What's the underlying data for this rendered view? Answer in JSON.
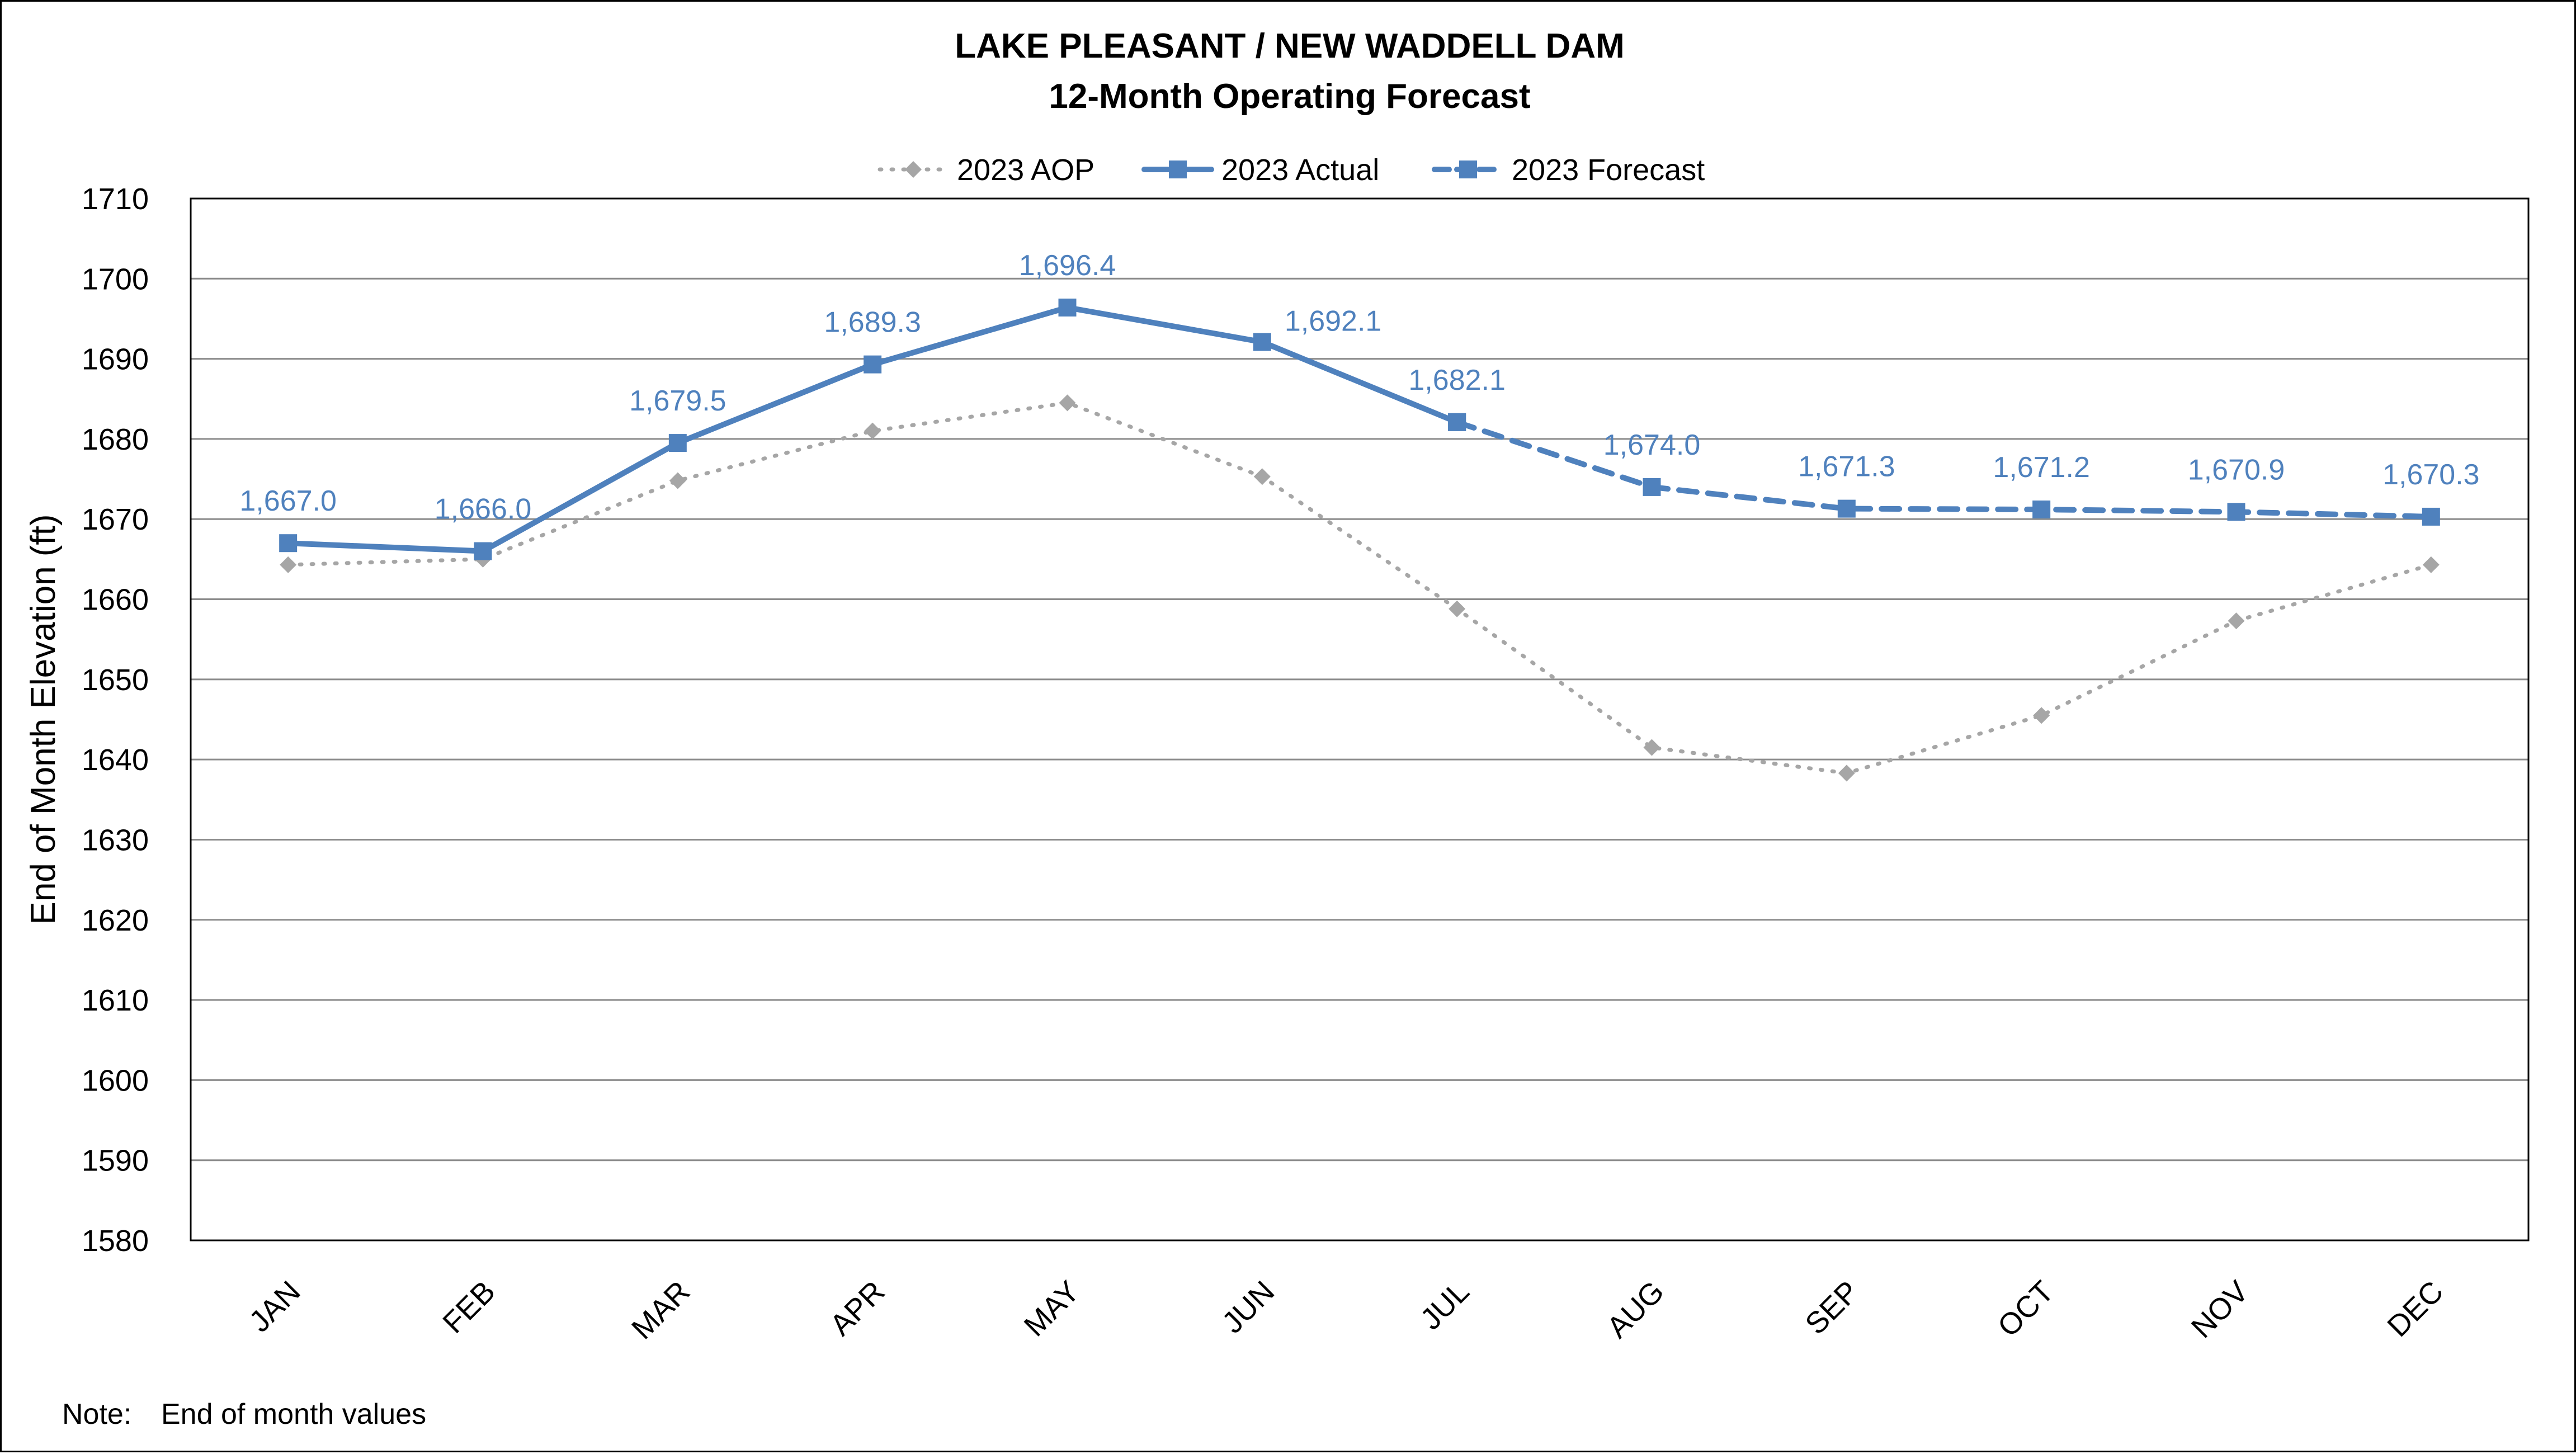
{
  "chart_data": {
    "type": "line",
    "title": "LAKE PLEASANT / NEW WADDELL DAM",
    "subtitle": "12-Month Operating Forecast",
    "xlabel": "",
    "ylabel": "End of Month Elevation (ft)",
    "ylim": [
      1580,
      1710
    ],
    "ytick_step": 10,
    "grid": true,
    "legend_position": "top-center",
    "categories": [
      "JAN",
      "FEB",
      "MAR",
      "APR",
      "MAY",
      "JUN",
      "JUL",
      "AUG",
      "SEP",
      "OCT",
      "NOV",
      "DEC"
    ],
    "series": [
      {
        "name": "2023 AOP",
        "style": "dotted",
        "marker": "diamond",
        "color": "#a6a6a6",
        "values": [
          1664.3,
          1665.0,
          1674.8,
          1681.0,
          1684.5,
          1675.3,
          1658.8,
          1641.5,
          1638.3,
          1645.5,
          1657.3,
          1664.3
        ]
      },
      {
        "name": "2023 Actual",
        "style": "solid",
        "marker": "square",
        "color": "#4f81bd",
        "values": [
          1667.0,
          1666.0,
          1679.5,
          1689.3,
          1696.4,
          1692.1,
          1682.1,
          null,
          null,
          null,
          null,
          null
        ]
      },
      {
        "name": "2023 Forecast",
        "style": "dashed",
        "marker": "square",
        "color": "#4f81bd",
        "values": [
          null,
          null,
          null,
          null,
          null,
          null,
          1682.1,
          1674.0,
          1671.3,
          1671.2,
          1670.9,
          1670.3
        ]
      }
    ],
    "data_labels": [
      "1,667.0",
      "1,666.0",
      "1,679.5",
      "1,689.3",
      "1,696.4",
      "1,692.1",
      "1,682.1",
      "1,674.0",
      "1,671.3",
      "1,671.2",
      "1,670.9",
      "1,670.3"
    ],
    "data_label_color": "#4f81bd",
    "note_label": "Note:",
    "note_text": "End of month values"
  }
}
